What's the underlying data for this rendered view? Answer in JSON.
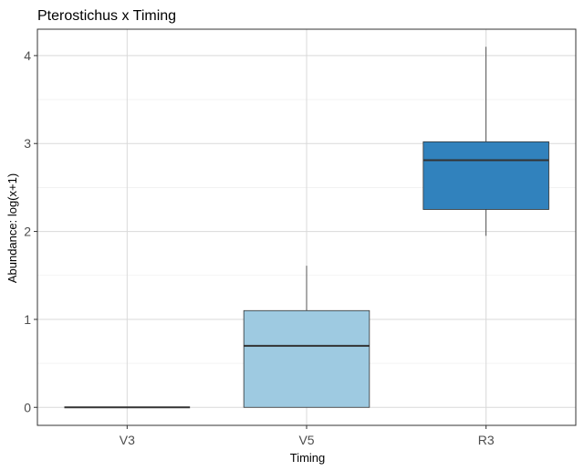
{
  "chart_data": {
    "type": "boxplot",
    "title": "Pterostichus x Timing",
    "xlabel": "Timing",
    "ylabel": "Abundance: log(x+1)",
    "categories": [
      "V3",
      "V5",
      "R3"
    ],
    "boxes": [
      {
        "category": "V3",
        "min": 0,
        "q1": 0,
        "median": 0,
        "q3": 0,
        "max": 0,
        "fill": "#DEEBF7"
      },
      {
        "category": "V5",
        "min": 0,
        "q1": 0,
        "median": 0.7,
        "q3": 1.1,
        "max": 1.61,
        "fill": "#9ECAE1"
      },
      {
        "category": "R3",
        "min": 1.95,
        "q1": 2.25,
        "median": 2.81,
        "q3": 3.02,
        "max": 4.1,
        "fill": "#3182BD"
      }
    ],
    "y_ticks": [
      0,
      1,
      2,
      3,
      4
    ],
    "y_tick_labels": [
      "0",
      "1",
      "2",
      "3",
      "4"
    ],
    "ylim": [
      -0.205,
      4.3
    ],
    "grid": true,
    "panel_border": true,
    "colors": {
      "box_stroke": "#333333",
      "grid_major": "#d9d9d9",
      "grid_minor": "#ebebeb",
      "border": "#333333"
    }
  }
}
